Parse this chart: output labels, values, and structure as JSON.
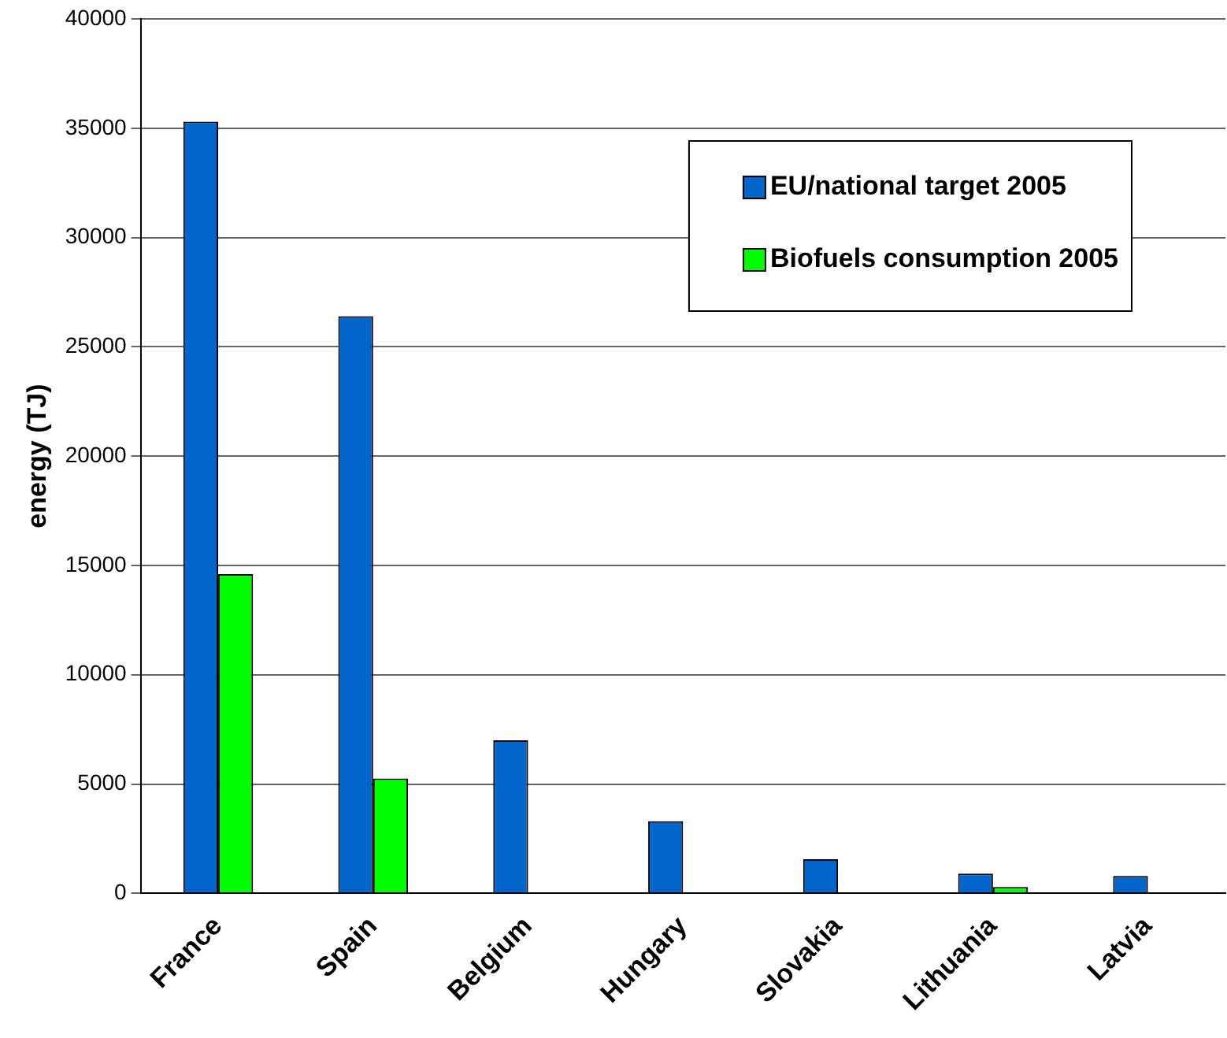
{
  "chart_data": {
    "type": "bar",
    "ylabel": "energy (TJ)",
    "categories": [
      "France",
      "Spain",
      "Belgium",
      "Hungary",
      "Slovakia",
      "Lithuania",
      "Latvia"
    ],
    "series": [
      {
        "name": "EU/national target 2005",
        "color": "#0066cc",
        "values": [
          35300,
          26400,
          7000,
          3300,
          1560,
          900,
          790
        ]
      },
      {
        "name": "Biofuels consumption 2005",
        "color": "#00ff00",
        "values": [
          14600,
          5250,
          0,
          0,
          0,
          290,
          0
        ]
      }
    ],
    "ylim": [
      0,
      40000
    ],
    "yticks": [
      0,
      5000,
      10000,
      15000,
      20000,
      25000,
      30000,
      35000,
      40000
    ],
    "grid": "y",
    "legend": "top right"
  }
}
